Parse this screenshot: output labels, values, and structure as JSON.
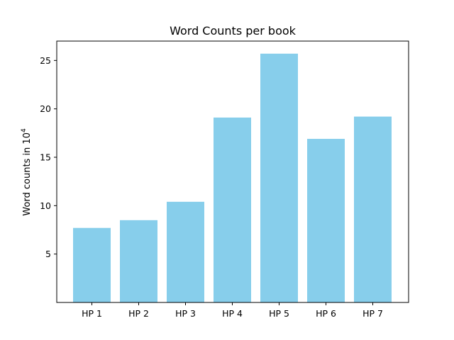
{
  "chart_data": {
    "type": "bar",
    "title": "Word Counts per book",
    "xlabel": "",
    "ylabel": "Word counts in 10",
    "ylabel_superscript": "4",
    "categories": [
      "HP 1",
      "HP 2",
      "HP 3",
      "HP 4",
      "HP 5",
      "HP 6",
      "HP 7"
    ],
    "values": [
      7.7,
      8.5,
      10.4,
      19.1,
      25.7,
      16.9,
      19.2
    ],
    "yticks": [
      5,
      10,
      15,
      20,
      25
    ],
    "ylim": [
      0,
      27
    ],
    "bar_color": "#87CEEB",
    "grid": false,
    "legend": false
  }
}
